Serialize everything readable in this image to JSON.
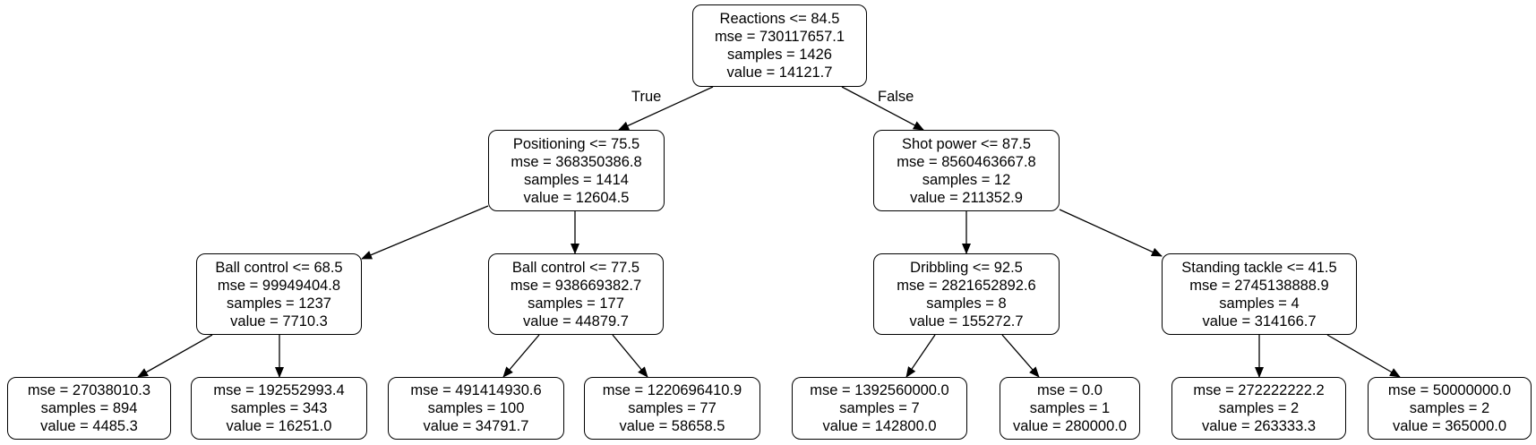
{
  "tree": {
    "nodes": [
      {
        "id": "n0",
        "split": "Reactions <= 84.5",
        "mse": "mse = 730117657.1",
        "samples": "samples = 1426",
        "value": "value = 14121.7"
      },
      {
        "id": "n1",
        "split": "Positioning <= 75.5",
        "mse": "mse = 368350386.8",
        "samples": "samples = 1414",
        "value": "value = 12604.5"
      },
      {
        "id": "n2",
        "split": "Shot power <= 87.5",
        "mse": "mse = 8560463667.8",
        "samples": "samples = 12",
        "value": "value = 211352.9"
      },
      {
        "id": "n3",
        "split": "Ball control <= 68.5",
        "mse": "mse = 99949404.8",
        "samples": "samples = 1237",
        "value": "value = 7710.3"
      },
      {
        "id": "n4",
        "split": "Ball control <= 77.5",
        "mse": "mse = 938669382.7",
        "samples": "samples = 177",
        "value": "value = 44879.7"
      },
      {
        "id": "n5",
        "split": "Dribbling <= 92.5",
        "mse": "mse = 2821652892.6",
        "samples": "samples = 8",
        "value": "value = 155272.7"
      },
      {
        "id": "n6",
        "split": "Standing tackle <= 41.5",
        "mse": "mse = 2745138888.9",
        "samples": "samples = 4",
        "value": "value = 314166.7"
      },
      {
        "id": "n7",
        "mse": "mse = 27038010.3",
        "samples": "samples = 894",
        "value": "value = 4485.3"
      },
      {
        "id": "n8",
        "mse": "mse = 192552993.4",
        "samples": "samples = 343",
        "value": "value = 16251.0"
      },
      {
        "id": "n9",
        "mse": "mse = 491414930.6",
        "samples": "samples = 100",
        "value": "value = 34791.7"
      },
      {
        "id": "n10",
        "mse": "mse = 1220696410.9",
        "samples": "samples = 77",
        "value": "value = 58658.5"
      },
      {
        "id": "n11",
        "mse": "mse = 1392560000.0",
        "samples": "samples = 7",
        "value": "value = 142800.0"
      },
      {
        "id": "n12",
        "mse": "mse = 0.0",
        "samples": "samples = 1",
        "value": "value = 280000.0"
      },
      {
        "id": "n13",
        "mse": "mse = 272222222.2",
        "samples": "samples = 2",
        "value": "value = 263333.3"
      },
      {
        "id": "n14",
        "mse": "mse = 50000000.0",
        "samples": "samples = 2",
        "value": "value = 365000.0"
      }
    ],
    "edges": [
      {
        "from": "n0",
        "to": "n1",
        "label": "True"
      },
      {
        "from": "n0",
        "to": "n2",
        "label": "False"
      },
      {
        "from": "n1",
        "to": "n3"
      },
      {
        "from": "n1",
        "to": "n4"
      },
      {
        "from": "n2",
        "to": "n5"
      },
      {
        "from": "n2",
        "to": "n6"
      },
      {
        "from": "n3",
        "to": "n7"
      },
      {
        "from": "n3",
        "to": "n8"
      },
      {
        "from": "n4",
        "to": "n9"
      },
      {
        "from": "n4",
        "to": "n10"
      },
      {
        "from": "n5",
        "to": "n11"
      },
      {
        "from": "n5",
        "to": "n12"
      },
      {
        "from": "n6",
        "to": "n13"
      },
      {
        "from": "n6",
        "to": "n14"
      }
    ]
  }
}
